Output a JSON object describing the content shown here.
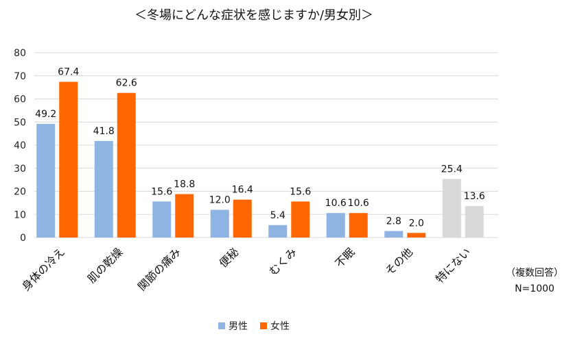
{
  "chart_data": {
    "type": "bar",
    "title": "＜冬場にどんな症状を感じますか/男女別＞",
    "categories": [
      "身体の冷え",
      "肌の乾燥",
      "関節の痛み",
      "便秘",
      "むくみ",
      "不眠",
      "その他",
      "特にない"
    ],
    "series": [
      {
        "name": "男性",
        "values": [
          49.2,
          41.8,
          15.6,
          12.0,
          5.4,
          10.6,
          2.8,
          25.4
        ],
        "color": "#8EB4E3"
      },
      {
        "name": "女性",
        "values": [
          67.4,
          62.6,
          18.8,
          16.4,
          15.6,
          10.6,
          2.0,
          13.6
        ],
        "color": "#FF6600"
      }
    ],
    "value_labels": [
      [
        "49.2",
        "41.8",
        "15.6",
        "12.0",
        "5.4",
        "10.6",
        "2.8",
        "25.4"
      ],
      [
        "67.4",
        "62.6",
        "18.8",
        "16.4",
        "15.6",
        "10.6",
        "2.0",
        "13.6"
      ]
    ],
    "highlight_category": "特にない",
    "highlight_color": "#D9D9D9",
    "ylim": [
      0,
      80
    ],
    "yticks": [
      0,
      10,
      20,
      30,
      40,
      50,
      60,
      70,
      80
    ],
    "grid": true,
    "legend_position": "bottom",
    "xlabel": "",
    "ylabel": ""
  },
  "note": {
    "line1": "（複数回答）",
    "line2": "N=1000"
  },
  "colors": {
    "grid": "#D9D9D9",
    "axis_text": "#222222"
  }
}
